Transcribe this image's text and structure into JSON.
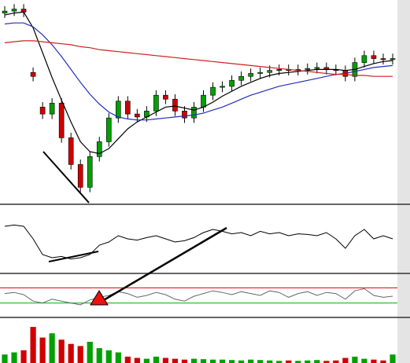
{
  "chart_data": [
    {
      "type": "candlestick",
      "x": [
        0,
        1,
        2,
        3,
        4,
        5,
        6,
        7,
        8,
        9,
        10,
        11,
        12,
        13,
        14,
        15,
        16,
        17,
        18,
        19,
        20,
        21,
        22,
        23,
        24,
        25,
        26,
        27,
        28,
        29,
        30,
        31,
        32,
        33,
        34,
        35,
        36,
        37,
        38,
        39,
        40,
        41
      ],
      "xlim": [
        -0.5,
        41.5
      ],
      "open": [
        85.0,
        85.2,
        85.4,
        79.0,
        75.5,
        74.8,
        75.9,
        72.4,
        69.7,
        67.4,
        70.5,
        72.0,
        74.4,
        76.1,
        74.8,
        74.5,
        75.1,
        76.7,
        76.3,
        75.1,
        74.4,
        75.5,
        76.7,
        77.5,
        77.6,
        78.2,
        78.6,
        78.9,
        79.0,
        79.2,
        79.3,
        79.2,
        79.3,
        79.4,
        79.5,
        79.3,
        79.2,
        78.6,
        80.0,
        80.7,
        80.4,
        80.3
      ],
      "high": [
        85.7,
        85.9,
        85.9,
        79.5,
        76.0,
        76.4,
        76.4,
        72.9,
        70.2,
        71.0,
        72.5,
        74.9,
        76.6,
        76.6,
        75.3,
        75.6,
        77.2,
        77.2,
        76.8,
        75.6,
        76.0,
        77.2,
        78.0,
        78.1,
        78.7,
        79.1,
        79.4,
        79.5,
        79.7,
        79.8,
        79.8,
        79.8,
        79.9,
        80.0,
        80.0,
        79.8,
        79.7,
        80.5,
        81.2,
        81.2,
        80.9,
        80.9
      ],
      "low": [
        84.5,
        84.7,
        84.6,
        78.1,
        74.3,
        74.3,
        71.9,
        69.2,
        66.9,
        66.9,
        70.0,
        71.5,
        73.9,
        74.3,
        74.0,
        74.0,
        74.6,
        75.8,
        74.6,
        73.9,
        73.9,
        75.0,
        76.2,
        77.0,
        77.1,
        77.7,
        78.1,
        78.4,
        78.5,
        78.7,
        78.7,
        78.7,
        78.8,
        78.9,
        78.8,
        78.7,
        78.1,
        78.1,
        79.5,
        79.9,
        79.8,
        79.8
      ],
      "close": [
        85.2,
        85.4,
        85.1,
        78.6,
        74.8,
        75.9,
        72.4,
        69.7,
        67.4,
        70.5,
        72.0,
        74.4,
        76.1,
        74.8,
        74.5,
        75.1,
        76.7,
        76.3,
        75.1,
        74.4,
        75.5,
        76.7,
        77.5,
        77.6,
        78.2,
        78.6,
        78.9,
        79.0,
        79.2,
        79.3,
        79.2,
        79.3,
        79.4,
        79.5,
        79.3,
        79.2,
        78.6,
        80.0,
        80.7,
        80.4,
        80.3,
        80.4
      ],
      "up_color": "#00a000",
      "down_color": "#d00000",
      "ylim": [
        66,
        86
      ],
      "series": [
        {
          "color": "#000000",
          "values": [
            84.8,
            85.0,
            85.1,
            83.5,
            81.0,
            78.5,
            76.2,
            74.0,
            72.0,
            71.0,
            70.8,
            71.3,
            72.3,
            73.3,
            74.0,
            74.5,
            75.0,
            75.5,
            75.6,
            75.4,
            75.2,
            75.5,
            76.0,
            76.6,
            77.1,
            77.6,
            78.0,
            78.4,
            78.7,
            78.9,
            79.0,
            79.1,
            79.2,
            79.3,
            79.3,
            79.3,
            79.2,
            79.3,
            79.6,
            79.9,
            80.1,
            80.2
          ]
        },
        {
          "color": "#2030c0",
          "values": [
            83.9,
            84.0,
            84.0,
            83.6,
            82.8,
            81.8,
            80.6,
            79.3,
            78.0,
            76.8,
            75.8,
            75.0,
            74.5,
            74.3,
            74.2,
            74.2,
            74.3,
            74.4,
            74.5,
            74.6,
            74.7,
            74.9,
            75.2,
            75.5,
            75.9,
            76.3,
            76.7,
            77.0,
            77.3,
            77.6,
            77.8,
            78.0,
            78.2,
            78.4,
            78.6,
            78.8,
            78.9,
            79.1,
            79.3,
            79.5,
            79.6,
            79.7
          ]
        },
        {
          "color": "#d02020",
          "values": [
            82.0,
            82.1,
            82.2,
            82.2,
            82.1,
            82.0,
            81.9,
            81.8,
            81.6,
            81.5,
            81.3,
            81.2,
            81.1,
            81.0,
            80.9,
            80.8,
            80.7,
            80.6,
            80.5,
            80.4,
            80.3,
            80.2,
            80.1,
            80.0,
            79.9,
            79.8,
            79.7,
            79.6,
            79.5,
            79.4,
            79.3,
            79.2,
            79.1,
            79.0,
            78.9,
            78.8,
            78.8,
            78.7,
            78.7,
            78.6,
            78.6,
            78.6
          ]
        }
      ]
    },
    {
      "type": "line",
      "ylim": [
        0,
        100
      ],
      "color": "#000000",
      "values": [
        70,
        72,
        70,
        50,
        25,
        20,
        22,
        18,
        20,
        25,
        40,
        45,
        55,
        50,
        48,
        52,
        55,
        50,
        45,
        47,
        52,
        60,
        65,
        62,
        58,
        60,
        55,
        62,
        58,
        60,
        55,
        58,
        57,
        55,
        60,
        50,
        35,
        55,
        65,
        50,
        55,
        50
      ]
    },
    {
      "type": "line",
      "ylim": [
        0,
        100
      ],
      "color": "#666666",
      "values": [
        55,
        58,
        52,
        35,
        30,
        40,
        35,
        30,
        25,
        38,
        45,
        50,
        60,
        55,
        45,
        50,
        58,
        52,
        40,
        35,
        48,
        55,
        62,
        58,
        52,
        60,
        55,
        50,
        62,
        58,
        45,
        55,
        60,
        50,
        58,
        55,
        40,
        62,
        68,
        50,
        45,
        48
      ],
      "hlines": [
        {
          "value": 70,
          "color": "#e03030"
        },
        {
          "value": 30,
          "color": "#30c030"
        }
      ]
    },
    {
      "type": "bar",
      "ylim": [
        0,
        100
      ],
      "values": [
        20,
        25,
        30,
        85,
        60,
        70,
        55,
        45,
        40,
        50,
        35,
        30,
        25,
        15,
        12,
        10,
        15,
        12,
        10,
        8,
        10,
        9,
        8,
        8,
        7,
        6,
        8,
        7,
        6,
        5,
        6,
        5,
        6,
        7,
        5,
        6,
        12,
        15,
        10,
        8,
        6,
        20
      ]
    }
  ]
}
